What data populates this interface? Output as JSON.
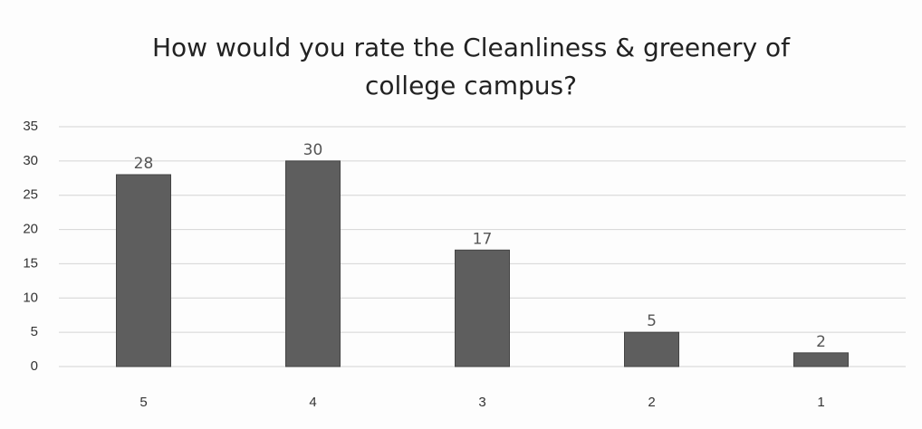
{
  "chart_data": {
    "type": "bar",
    "title": "How would you rate the Cleanliness & greenery of college campus?",
    "categories": [
      "5",
      "4",
      "3",
      "2",
      "1"
    ],
    "values": [
      28,
      30,
      17,
      5,
      2
    ],
    "color": "#5e5e5e",
    "ylim": [
      0,
      35
    ],
    "yticks": [
      0,
      5,
      10,
      15,
      20,
      25,
      30,
      35
    ],
    "grid": true
  }
}
